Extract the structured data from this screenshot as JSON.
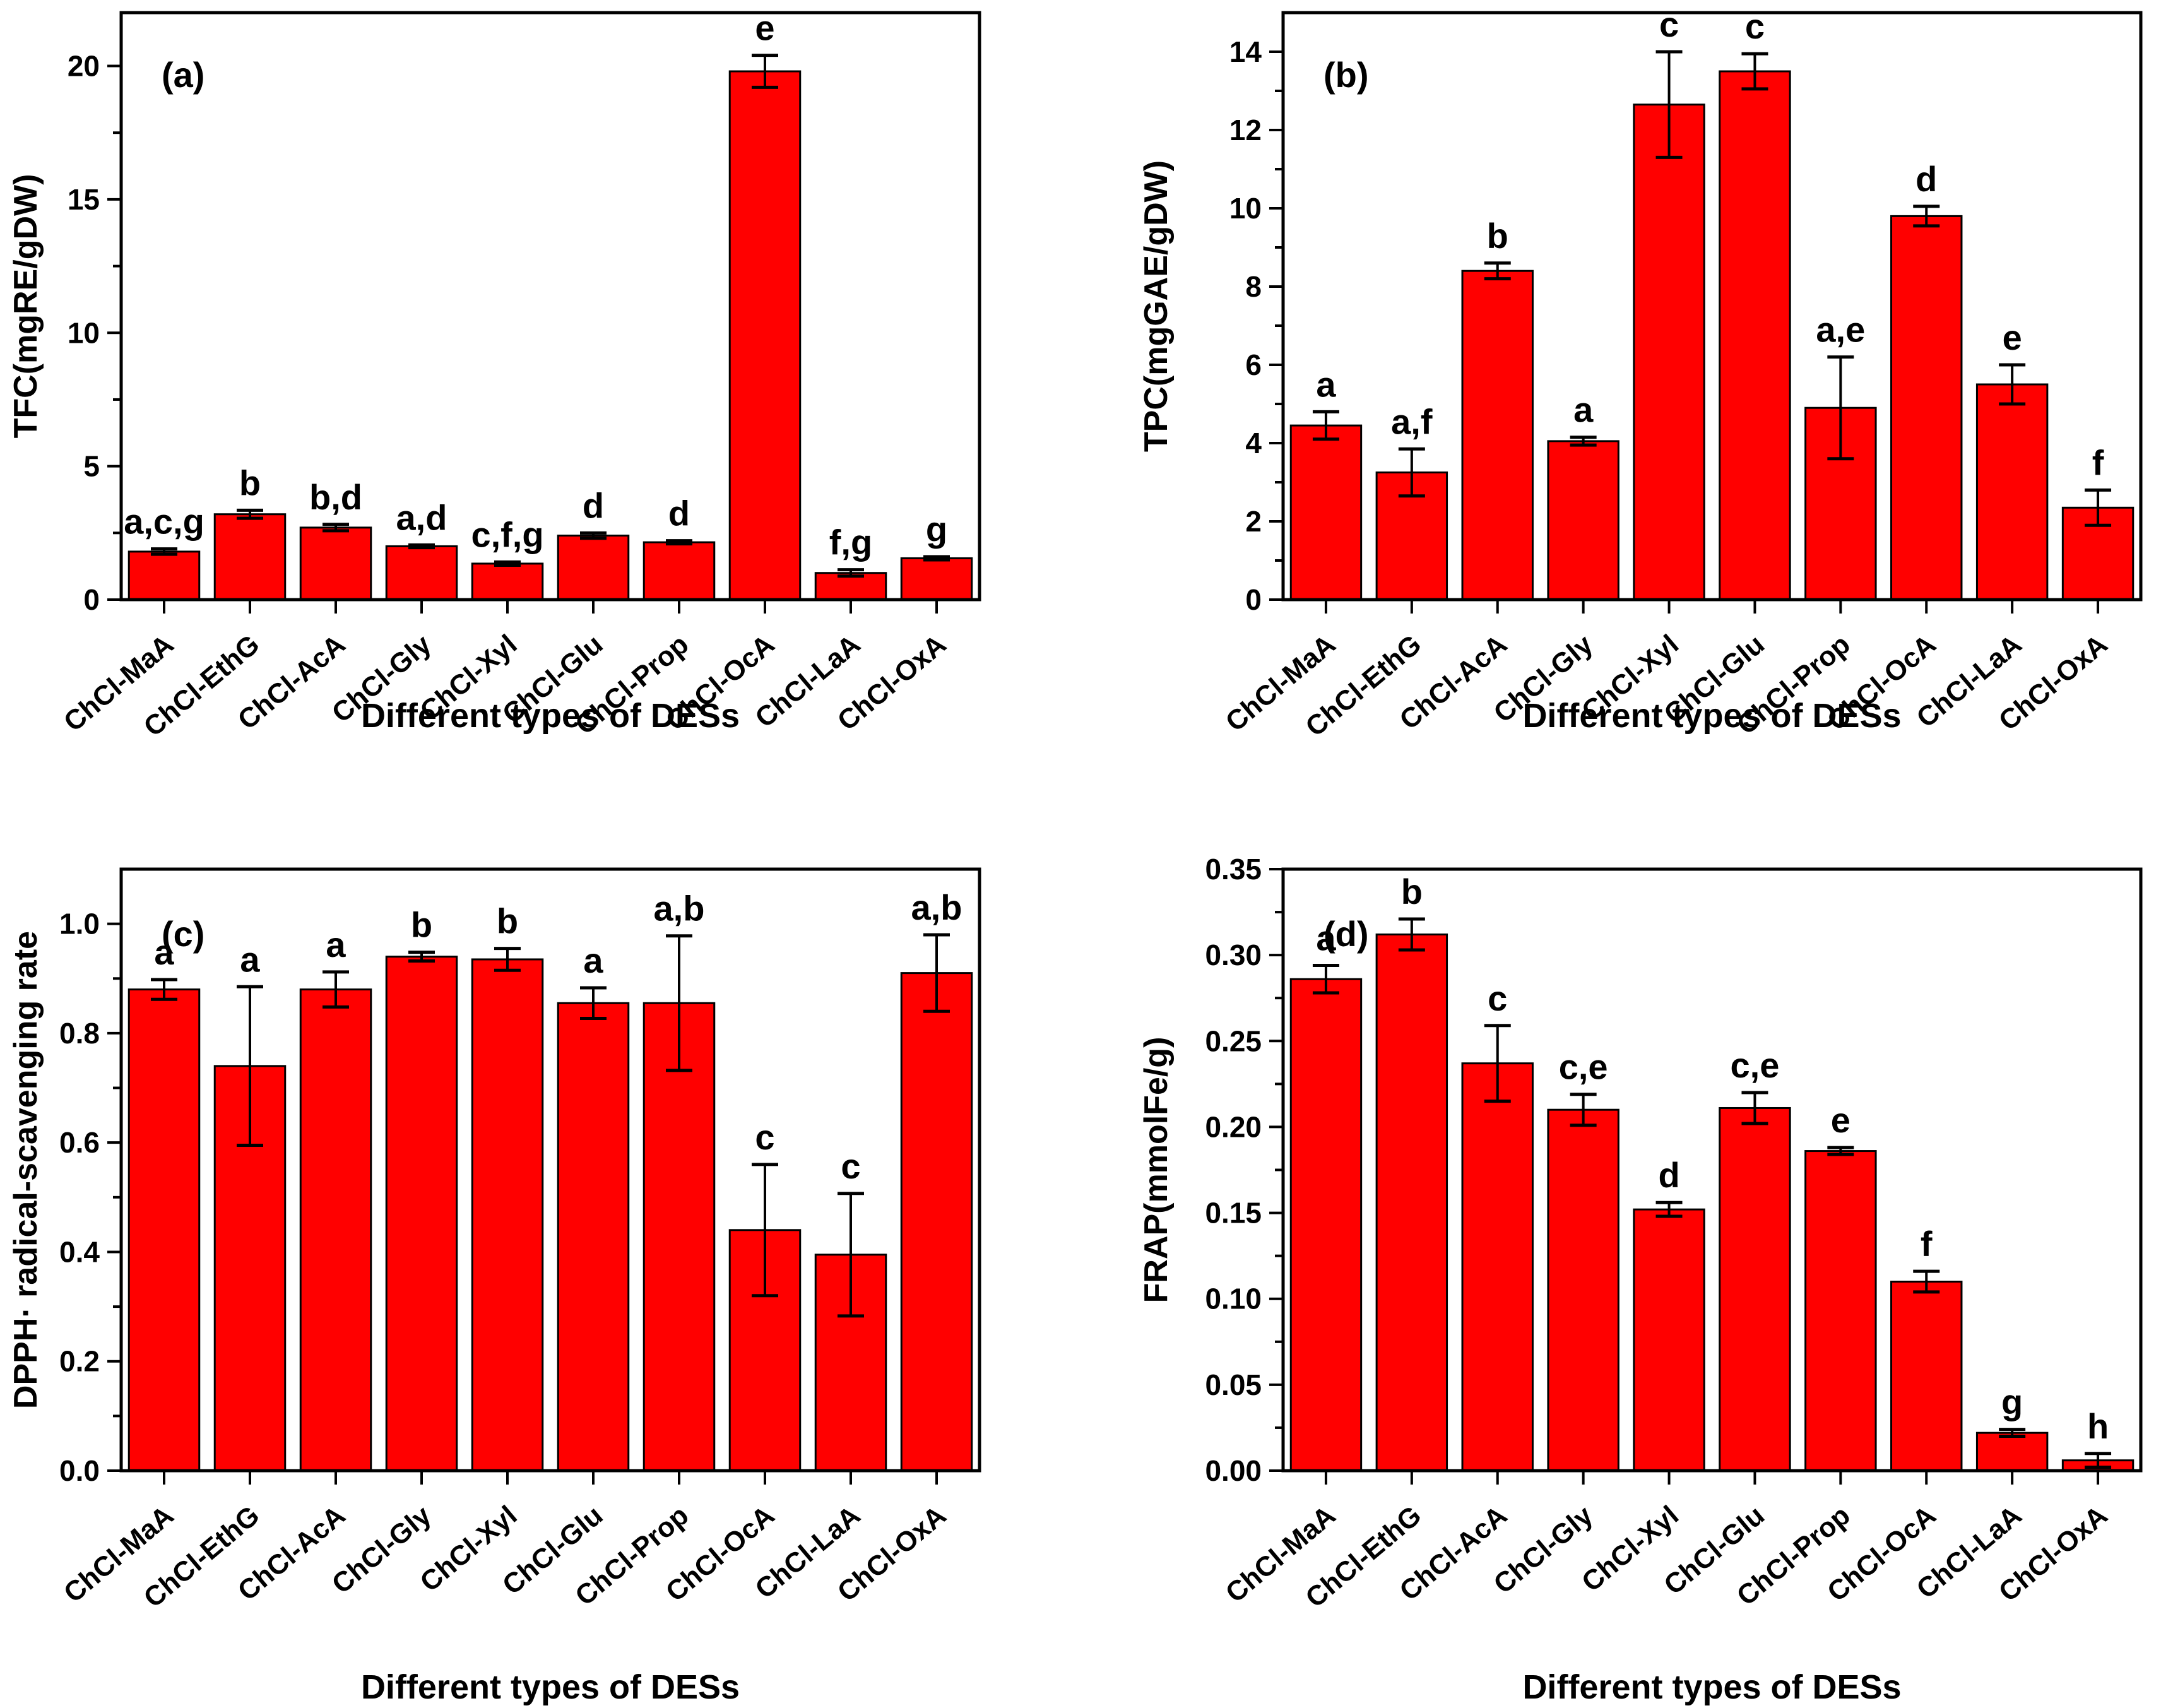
{
  "figure": {
    "background": "#ffffff",
    "description_visible_text_only": true
  },
  "colors": {
    "bar_fill": "#FF0000",
    "bar_edge": "#000000",
    "axis": "#000000",
    "text": "#000000"
  },
  "chart_data": [
    {
      "id": "a",
      "type": "bar",
      "panel_label": "(a)",
      "ylabel": "TFC(mgRE/gDW)",
      "xlabel": "Different types of DESs",
      "ylim": [
        0,
        22
      ],
      "minor_step": 2.5,
      "grid": false,
      "yticks": [
        {
          "v": 0,
          "label": "0"
        },
        {
          "v": 5,
          "label": "5"
        },
        {
          "v": 10,
          "label": "10"
        },
        {
          "v": 15,
          "label": "15"
        },
        {
          "v": 20,
          "label": "20"
        }
      ],
      "categories": [
        "ChCl-MaA",
        "ChCl-EthG",
        "ChCl-AcA",
        "ChCl-Gly",
        "ChCl-Xyl",
        "ChCl-Glu",
        "ChCl-Prop",
        "ChCl-OcA",
        "ChCl-LaA",
        "ChCl-OxA"
      ],
      "values": [
        1.8,
        3.2,
        2.7,
        2.0,
        1.35,
        2.4,
        2.15,
        19.8,
        1.0,
        1.55
      ],
      "errors": [
        0.1,
        0.15,
        0.12,
        0.05,
        0.06,
        0.1,
        0.06,
        0.6,
        0.12,
        0.06
      ],
      "sig_labels": [
        "a,c,g",
        "b",
        "b,d",
        "a,d",
        "c,f,g",
        "d",
        "d",
        "e",
        "f,g",
        "g"
      ]
    },
    {
      "id": "b",
      "type": "bar",
      "panel_label": "(b)",
      "ylabel": "TPC(mgGAE/gDW)",
      "xlabel": "Different types of DESs",
      "ylim": [
        0,
        15
      ],
      "minor_step": 1,
      "grid": false,
      "yticks": [
        {
          "v": 0,
          "label": "0"
        },
        {
          "v": 2,
          "label": "2"
        },
        {
          "v": 4,
          "label": "4"
        },
        {
          "v": 6,
          "label": "6"
        },
        {
          "v": 8,
          "label": "8"
        },
        {
          "v": 10,
          "label": "10"
        },
        {
          "v": 12,
          "label": "12"
        },
        {
          "v": 14,
          "label": "14"
        }
      ],
      "categories": [
        "ChCl-MaA",
        "ChCl-EthG",
        "ChCl-AcA",
        "ChCl-Gly",
        "ChCl-Xyl",
        "ChCl-Glu",
        "ChCl-Prop",
        "ChCl-OcA",
        "ChCl-LaA",
        "ChCl-OxA"
      ],
      "values": [
        4.45,
        3.25,
        8.4,
        4.05,
        12.65,
        13.5,
        4.9,
        9.8,
        5.5,
        2.35
      ],
      "errors": [
        0.35,
        0.6,
        0.2,
        0.1,
        1.35,
        0.45,
        1.3,
        0.25,
        0.5,
        0.45
      ],
      "sig_labels": [
        "a",
        "a,f",
        "b",
        "a",
        "c",
        "c",
        "a,e",
        "d",
        "e",
        "f"
      ]
    },
    {
      "id": "c",
      "type": "bar",
      "panel_label": "(c)",
      "ylabel": "DPPH· radical-scavenging rate",
      "xlabel": "Different types of DESs",
      "ylim": [
        0,
        1.1
      ],
      "minor_step": 0.1,
      "grid": false,
      "yticks": [
        {
          "v": 0,
          "label": "0.0"
        },
        {
          "v": 0.2,
          "label": "0.2"
        },
        {
          "v": 0.4,
          "label": "0.4"
        },
        {
          "v": 0.6,
          "label": "0.6"
        },
        {
          "v": 0.8,
          "label": "0.8"
        },
        {
          "v": 1.0,
          "label": "1.0"
        }
      ],
      "categories": [
        "ChCl-MaA",
        "ChCl-EthG",
        "ChCl-AcA",
        "ChCl-Gly",
        "ChCl-Xyl",
        "ChCl-Glu",
        "ChCl-Prop",
        "ChCl-OcA",
        "ChCl-LaA",
        "ChCl-OxA"
      ],
      "values": [
        0.88,
        0.74,
        0.88,
        0.94,
        0.935,
        0.855,
        0.855,
        0.44,
        0.395,
        0.91
      ],
      "errors": [
        0.018,
        0.145,
        0.032,
        0.008,
        0.02,
        0.028,
        0.123,
        0.12,
        0.112,
        0.07
      ],
      "sig_labels": [
        "a",
        "a",
        "a",
        "b",
        "b",
        "a",
        "a,b",
        "c",
        "c",
        "a,b"
      ]
    },
    {
      "id": "d",
      "type": "bar",
      "panel_label": "(d)",
      "ylabel": "FRAP(mmolFe/g)",
      "xlabel": "Different types of DESs",
      "ylim": [
        0,
        0.35
      ],
      "minor_step": 0.025,
      "grid": false,
      "yticks": [
        {
          "v": 0,
          "label": "0.00"
        },
        {
          "v": 0.05,
          "label": "0.05"
        },
        {
          "v": 0.1,
          "label": "0.10"
        },
        {
          "v": 0.15,
          "label": "0.15"
        },
        {
          "v": 0.2,
          "label": "0.20"
        },
        {
          "v": 0.25,
          "label": "0.25"
        },
        {
          "v": 0.3,
          "label": "0.30"
        },
        {
          "v": 0.35,
          "label": "0.35"
        }
      ],
      "categories": [
        "ChCl-MaA",
        "ChCl-EthG",
        "ChCl-AcA",
        "ChCl-Gly",
        "ChCl-Xyl",
        "ChCl-Glu",
        "ChCl-Prop",
        "ChCl-OcA",
        "ChCl-LaA",
        "ChCl-OxA"
      ],
      "values": [
        0.286,
        0.312,
        0.237,
        0.21,
        0.152,
        0.211,
        0.186,
        0.11,
        0.022,
        0.006
      ],
      "errors": [
        0.008,
        0.009,
        0.022,
        0.009,
        0.004,
        0.009,
        0.002,
        0.006,
        0.002,
        0.004
      ],
      "sig_labels": [
        "a",
        "b",
        "c",
        "c,e",
        "d",
        "c,e",
        "e",
        "f",
        "g",
        "h"
      ]
    }
  ]
}
